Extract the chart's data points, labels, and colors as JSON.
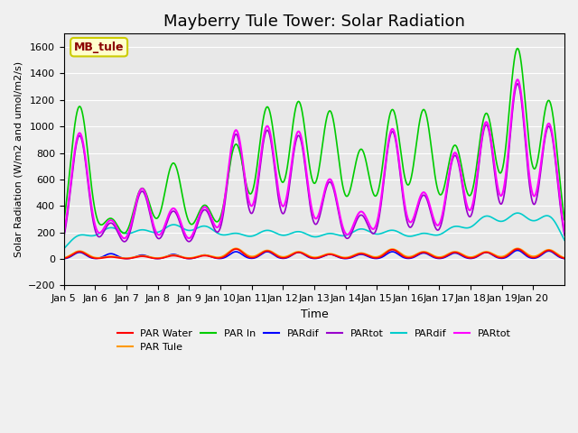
{
  "title": "Mayberry Tule Tower: Solar Radiation",
  "ylabel": "Solar Radiation (W/m2 and umol/m2/s)",
  "xlabel": "Time",
  "ylim": [
    -200,
    1700
  ],
  "yticks": [
    -200,
    0,
    200,
    400,
    600,
    800,
    1000,
    1200,
    1400,
    1600
  ],
  "xtick_labels": [
    "Jan 5",
    "Jan 6",
    "Jan 7",
    "Jan 8",
    "Jan 9",
    "Jan 10",
    "Jan 11",
    "Jan 12",
    "Jan 13",
    "Jan 14",
    "Jan 15",
    "Jan 16",
    "Jan 17",
    "Jan 18",
    "Jan 19",
    "Jan 20"
  ],
  "legend_entries": [
    {
      "label": "PAR Water",
      "color": "#ff0000",
      "lw": 1.5
    },
    {
      "label": "PAR Tule",
      "color": "#ff9900",
      "lw": 1.5
    },
    {
      "label": "PAR In",
      "color": "#00cc00",
      "lw": 1.5
    },
    {
      "label": "PARdif",
      "color": "#0000ff",
      "lw": 1.5
    },
    {
      "label": "PARtot",
      "color": "#9900cc",
      "lw": 1.5
    },
    {
      "label": "PARdif",
      "color": "#00cccc",
      "lw": 1.5
    },
    {
      "label": "PARtot",
      "color": "#ff00ff",
      "lw": 1.5
    }
  ],
  "mb_tule_box": {
    "text": "MB_tule",
    "text_color": "#8b0000",
    "bg_color": "#ffffcc",
    "edge_color": "#cccc00"
  },
  "title_fontsize": 13,
  "n_days": 16,
  "peaks_green": [
    1150,
    300,
    530,
    720,
    400,
    860,
    1140,
    1180,
    1110,
    820,
    1120,
    1120,
    850,
    1090,
    1580,
    1190
  ],
  "peaks_magenta": [
    950,
    290,
    530,
    380,
    390,
    970,
    1000,
    960,
    600,
    355,
    980,
    500,
    800,
    1030,
    1350,
    1020
  ],
  "peaks_orange": [
    60,
    20,
    25,
    30,
    30,
    80,
    65,
    55,
    40,
    45,
    75,
    55,
    55,
    55,
    80,
    70
  ],
  "peaks_red": [
    55,
    15,
    20,
    25,
    25,
    75,
    60,
    50,
    35,
    40,
    70,
    50,
    50,
    50,
    75,
    65
  ],
  "peaks_cyan": [
    170,
    220,
    200,
    240,
    230,
    175,
    200,
    190,
    175,
    210,
    200,
    175,
    225,
    300,
    320,
    310
  ],
  "peaks_blue": [
    50,
    40,
    30,
    35,
    30,
    55,
    55,
    50,
    35,
    35,
    55,
    45,
    45,
    50,
    65,
    60
  ],
  "peaks_purple": [
    930,
    270,
    510,
    360,
    370,
    940,
    970,
    930,
    580,
    330,
    960,
    480,
    780,
    1010,
    1320,
    1000
  ]
}
